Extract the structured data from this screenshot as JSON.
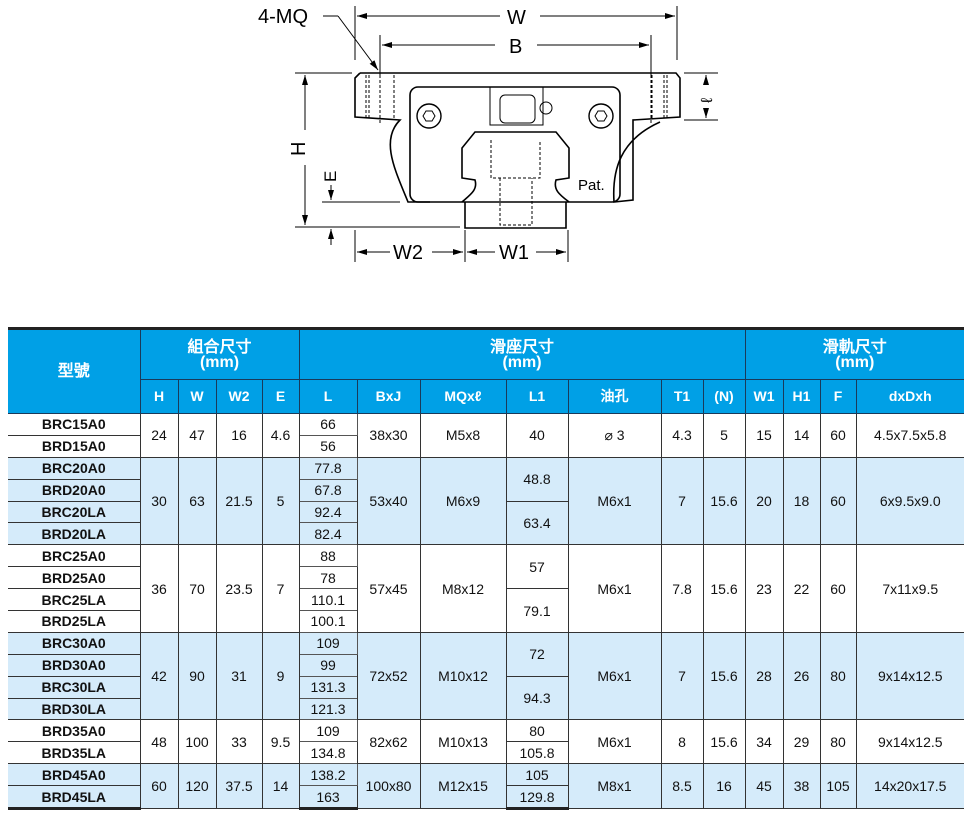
{
  "drawing": {
    "labels": {
      "mq": "4-MQ",
      "w": "W",
      "b": "B",
      "h": "H",
      "e": "E",
      "w2": "W2",
      "w1": "W1",
      "l": "ℓ",
      "pat": "Pat."
    }
  },
  "table": {
    "header_color": "#00a0e6",
    "alt_row_color": "#d5ebfa",
    "model_header": "型號",
    "groups": [
      {
        "title": "組合尺寸",
        "unit": "(mm)",
        "columns": [
          "H",
          "W",
          "W2",
          "E"
        ]
      },
      {
        "title": "滑座尺寸",
        "unit": "(mm)",
        "columns": [
          "L",
          "BxJ",
          "MQxℓ",
          "L1",
          "油孔",
          "T1",
          "(N)"
        ]
      },
      {
        "title": "滑軌尺寸",
        "unit": "(mm)",
        "columns": [
          "W1",
          "H1",
          "F",
          "dxDxh"
        ]
      }
    ],
    "rows": [
      {
        "models": [
          "BRC15A0",
          "BRD15A0"
        ],
        "H": "24",
        "W": "47",
        "W2": "16",
        "E": "4.6",
        "L": [
          "66",
          "56"
        ],
        "BxJ": "38x30",
        "MQxl": "M5x8",
        "L1": [
          "40"
        ],
        "oil": "⌀ 3",
        "T1": "4.3",
        "N": "5",
        "W1": "15",
        "H1": "14",
        "F": "60",
        "dDh": "4.5x7.5x5.8"
      },
      {
        "models": [
          "BRC20A0",
          "BRD20A0",
          "BRC20LA",
          "BRD20LA"
        ],
        "H": "30",
        "W": "63",
        "W2": "21.5",
        "E": "5",
        "L": [
          "77.8",
          "67.8",
          "92.4",
          "82.4"
        ],
        "BxJ": "53x40",
        "MQxl": "M6x9",
        "L1": [
          "48.8",
          "63.4"
        ],
        "oil": "M6x1",
        "T1": "7",
        "N": "15.6",
        "W1": "20",
        "H1": "18",
        "F": "60",
        "dDh": "6x9.5x9.0"
      },
      {
        "models": [
          "BRC25A0",
          "BRD25A0",
          "BRC25LA",
          "BRD25LA"
        ],
        "H": "36",
        "W": "70",
        "W2": "23.5",
        "E": "7",
        "L": [
          "88",
          "78",
          "110.1",
          "100.1"
        ],
        "BxJ": "57x45",
        "MQxl": "M8x12",
        "L1": [
          "57",
          "79.1"
        ],
        "oil": "M6x1",
        "T1": "7.8",
        "N": "15.6",
        "W1": "23",
        "H1": "22",
        "F": "60",
        "dDh": "7x11x9.5"
      },
      {
        "models": [
          "BRC30A0",
          "BRD30A0",
          "BRC30LA",
          "BRD30LA"
        ],
        "H": "42",
        "W": "90",
        "W2": "31",
        "E": "9",
        "L": [
          "109",
          "99",
          "131.3",
          "121.3"
        ],
        "BxJ": "72x52",
        "MQxl": "M10x12",
        "L1": [
          "72",
          "94.3"
        ],
        "oil": "M6x1",
        "T1": "7",
        "N": "15.6",
        "W1": "28",
        "H1": "26",
        "F": "80",
        "dDh": "9x14x12.5"
      },
      {
        "models": [
          "BRD35A0",
          "BRD35LA"
        ],
        "H": "48",
        "W": "100",
        "W2": "33",
        "E": "9.5",
        "L": [
          "109",
          "134.8"
        ],
        "BxJ": "82x62",
        "MQxl": "M10x13",
        "L1": [
          "80",
          "105.8"
        ],
        "oil": "M6x1",
        "T1": "8",
        "N": "15.6",
        "W1": "34",
        "H1": "29",
        "F": "80",
        "dDh": "9x14x12.5"
      },
      {
        "models": [
          "BRD45A0",
          "BRD45LA"
        ],
        "H": "60",
        "W": "120",
        "W2": "37.5",
        "E": "14",
        "L": [
          "138.2",
          "163"
        ],
        "BxJ": "100x80",
        "MQxl": "M12x15",
        "L1": [
          "105",
          "129.8"
        ],
        "oil": "M8x1",
        "T1": "8.5",
        "N": "16",
        "W1": "45",
        "H1": "38",
        "F": "105",
        "dDh": "14x20x17.5"
      }
    ]
  }
}
